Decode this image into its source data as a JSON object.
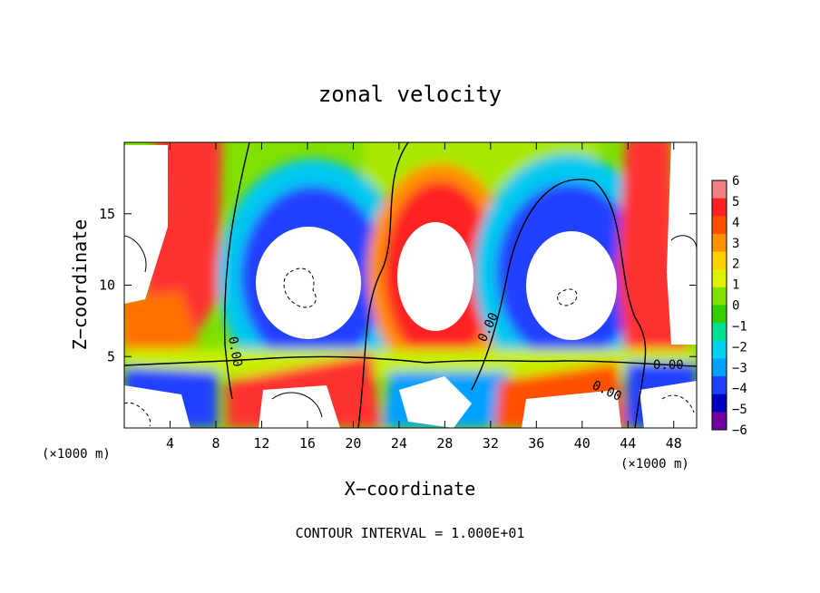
{
  "chart_data": {
    "type": "heatmap",
    "title": "zonal velocity",
    "xlabel": "X−coordinate",
    "ylabel": "Z−coordinate",
    "x_unit_left": "(×1000 m)",
    "x_unit_right": "(×1000 m)",
    "footer": "CONTOUR INTERVAL = 1.000E+01",
    "xlim": [
      0,
      50
    ],
    "ylim": [
      0,
      20
    ],
    "x_ticks": [
      4,
      8,
      12,
      16,
      20,
      24,
      28,
      32,
      36,
      40,
      44,
      48
    ],
    "x_tick_labels": [
      "4",
      "8",
      "12",
      "16",
      "20",
      "24",
      "28",
      "32",
      "36",
      "40",
      "44",
      "48"
    ],
    "y_ticks": [
      5,
      10,
      15
    ],
    "y_tick_labels": [
      "5",
      "10",
      "15"
    ],
    "colorbar": {
      "levels": [
        6,
        5,
        4,
        3,
        2,
        1,
        0,
        -1,
        -2,
        -3,
        -4,
        -5,
        -6
      ],
      "labels": [
        "6",
        "5",
        "4",
        "3",
        "2",
        "1",
        "0",
        "−1",
        "−2",
        "−3",
        "−4",
        "−5",
        "−6"
      ],
      "colors": [
        "#f08080",
        "#ff2020",
        "#ff5000",
        "#ff9000",
        "#ffd000",
        "#e0f000",
        "#80e000",
        "#30d000",
        "#00e090",
        "#00d0f0",
        "#00a0ff",
        "#2040ff",
        "#0000c0",
        "#7000a0"
      ]
    },
    "contour_labels": [
      "0.00",
      "0.00",
      "0.00",
      "0.00"
    ],
    "features": [
      {
        "type": "negative-core",
        "cx": 18,
        "cz": 10.5,
        "rx": 4.8,
        "rz": 5.5
      },
      {
        "type": "positive-core",
        "cx": 27.5,
        "cz": 10.5,
        "rx": 3.8,
        "rz": 5.2
      },
      {
        "type": "negative-core",
        "cx": 38.5,
        "cz": 10.5,
        "rx": 4.8,
        "rz": 5.5
      },
      {
        "type": "positive-band",
        "x_from": 3,
        "x_to": 8
      },
      {
        "type": "positive-band",
        "x_from": 43.5,
        "x_to": 48
      }
    ]
  }
}
